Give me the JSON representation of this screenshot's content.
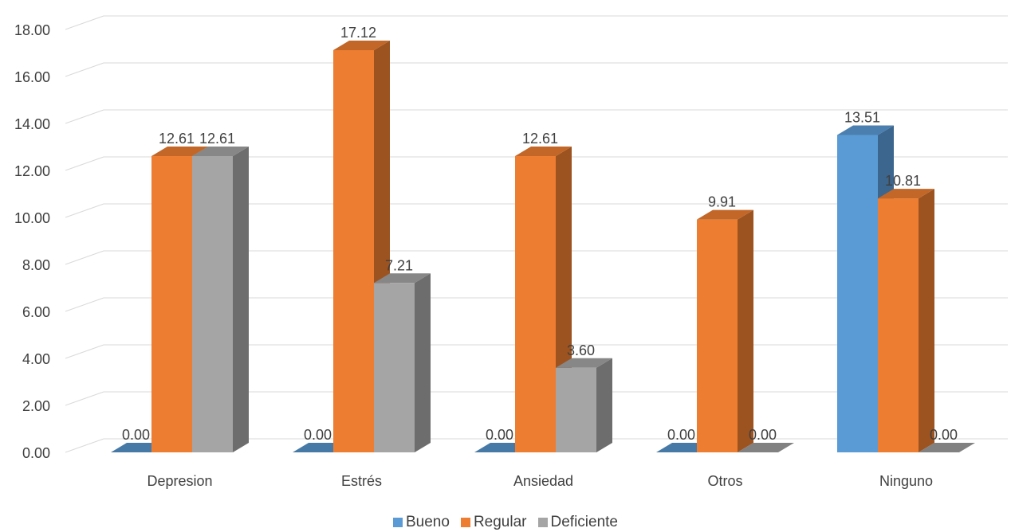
{
  "chart_data": {
    "type": "bar",
    "title": "",
    "xlabel": "",
    "ylabel": "",
    "ylim": [
      0,
      18
    ],
    "yticks": [
      "0.00",
      "2.00",
      "4.00",
      "6.00",
      "8.00",
      "10.00",
      "12.00",
      "14.00",
      "16.00",
      "18.00"
    ],
    "categories": [
      "Depresion",
      "Estrés",
      "Ansiedad",
      "Otros",
      "Ninguno"
    ],
    "series": [
      {
        "name": "Bueno",
        "color": "#5B9BD5",
        "values": [
          0.0,
          0.0,
          0.0,
          0.0,
          13.51
        ],
        "labels": [
          "0.00",
          "0.00",
          "0.00",
          "0.00",
          "13.51"
        ]
      },
      {
        "name": "Regular",
        "color": "#ED7D31",
        "values": [
          12.61,
          17.12,
          12.61,
          9.91,
          10.81
        ],
        "labels": [
          "12.61",
          "17.12",
          "12.61",
          "9.91",
          "10.81"
        ]
      },
      {
        "name": "Deficiente",
        "color": "#A5A5A5",
        "values": [
          12.61,
          7.21,
          3.6,
          0.0,
          0.0
        ],
        "labels": [
          "12.61",
          "7.21",
          "3.60",
          "0.00",
          "0.00"
        ]
      }
    ],
    "grid": true,
    "legend": "bottom",
    "style": "3d-clustered-column"
  }
}
